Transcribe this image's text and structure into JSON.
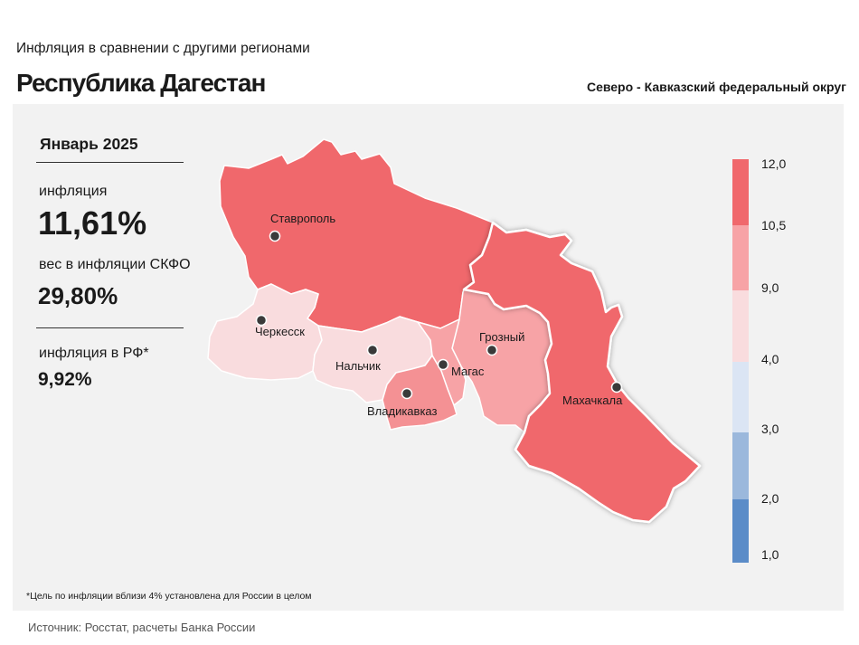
{
  "header": {
    "subtitle": "Инфляция в сравнении с другими регионами",
    "title": "Республика Дагестан",
    "district": "Северо - Кавказский федеральный округ"
  },
  "stats": {
    "period": "Январь 2025",
    "inflation_label": "инфляция",
    "inflation_value": "11,61%",
    "weight_label": "вес в инфляции СКФО",
    "weight_value": "29,80%",
    "rf_label": "инфляция в РФ*",
    "rf_value": "9,92%"
  },
  "legend": {
    "ticks": [
      "12,0",
      "10,5",
      "9,0",
      "4,0",
      "3,0",
      "2,0",
      "1,0"
    ],
    "colors": [
      "#f0686c",
      "#f7a3a6",
      "#f9dcde",
      "#dbe5f4",
      "#9bb8dc",
      "#5b8cc8"
    ]
  },
  "map": {
    "cities": {
      "stavropol": "Ставрополь",
      "cherkessk": "Черкесск",
      "nalchik": "Нальчик",
      "magas": "Магас",
      "vladikavkaz": "Владикавказ",
      "grozny": "Грозный",
      "makhachkala": "Махачкала"
    },
    "region_fill": {
      "stavropol": "#f0686c",
      "dagestan": "#f0686c",
      "chechnya": "#f7a3a6",
      "north_ossetia": "#f49194",
      "ingushetia": "#f7a3a6",
      "kbr": "#f9dcde",
      "kchr": "#f9dcde"
    }
  },
  "footnote": "*Цель по инфляции вблизи 4% установлена для России в целом",
  "source": "Источник: Росстат, расчеты Банка России"
}
